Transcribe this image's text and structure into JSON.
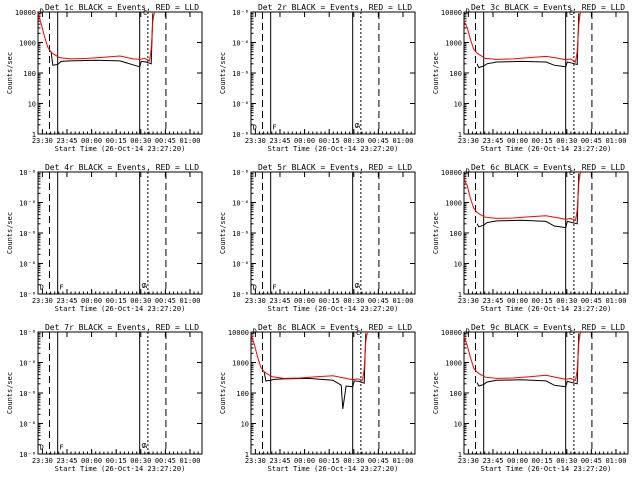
{
  "x_tick_labels": [
    "23:30",
    "23:45",
    "00:00",
    "00:15",
    "00:30",
    "00:45",
    "01:00"
  ],
  "x_label": "Start Time (26-Oct-14 23:27:20)",
  "y_label": "Counts/sec",
  "colors": {
    "events": "#000000",
    "lld": "#ff0000"
  },
  "chart_data": [
    {
      "type": "line",
      "title": "Det 1c BLACK = Events, RED = LLD",
      "y_scale": "log",
      "ylim": [
        1,
        10000
      ],
      "y_tick_labels": [
        "10000",
        "1000",
        "100",
        "10",
        "1"
      ],
      "xlim_min": [
        0,
        100
      ],
      "has_data": true,
      "annotations": [
        "D",
        "C"
      ],
      "series": [
        {
          "name": "Events",
          "color": "#000000",
          "x": [
            8,
            9,
            12,
            14,
            20,
            35,
            50,
            62,
            63,
            66,
            69,
            70
          ],
          "y": [
            500,
            180,
            190,
            240,
            250,
            260,
            250,
            160,
            240,
            230,
            200,
            9000
          ]
        },
        {
          "name": "LLD",
          "color": "#ff0000",
          "x": [
            0,
            2,
            4,
            6,
            8,
            10,
            13,
            20,
            30,
            40,
            50,
            58,
            62,
            65,
            68,
            69,
            70,
            71
          ],
          "y": [
            9000,
            4000,
            1500,
            700,
            480,
            400,
            320,
            290,
            300,
            330,
            360,
            290,
            280,
            300,
            250,
            600,
            5000,
            10000
          ]
        }
      ]
    },
    {
      "type": "line",
      "title": "Det 2r BLACK = Events, RED = LLD",
      "y_scale": "log",
      "ylim": [
        1,
        10000
      ],
      "y_tick_labels": [
        "10⁻⁶",
        "10⁻⁶",
        "10⁻⁶",
        "10⁻⁶",
        "10⁻⁶"
      ],
      "xlim_min": [
        0,
        100
      ],
      "has_data": false,
      "annotations": [
        "D",
        "F",
        "C",
        "A"
      ],
      "series": []
    },
    {
      "type": "line",
      "title": "Det 3c BLACK = Events, RED = LLD",
      "y_scale": "log",
      "ylim": [
        1,
        10000
      ],
      "y_tick_labels": [
        "10000",
        "1000",
        "100",
        "10",
        "1"
      ],
      "xlim_min": [
        0,
        100
      ],
      "has_data": true,
      "annotations": [
        "D",
        "C"
      ],
      "series": [
        {
          "name": "Events",
          "color": "#000000",
          "x": [
            8,
            9,
            12,
            14,
            20,
            35,
            50,
            55,
            62,
            63,
            66,
            69,
            70
          ],
          "y": [
            200,
            150,
            170,
            200,
            230,
            240,
            230,
            180,
            160,
            230,
            210,
            190,
            9000
          ]
        },
        {
          "name": "LLD",
          "color": "#ff0000",
          "x": [
            0,
            2,
            4,
            6,
            8,
            10,
            13,
            20,
            30,
            40,
            50,
            58,
            62,
            65,
            68,
            69,
            70,
            71
          ],
          "y": [
            5000,
            3000,
            1200,
            600,
            450,
            380,
            300,
            280,
            290,
            320,
            350,
            300,
            270,
            290,
            230,
            500,
            4000,
            10000
          ]
        }
      ]
    },
    {
      "type": "line",
      "title": "Det 4r BLACK = Events, RED = LLD",
      "y_scale": "log",
      "ylim": [
        1,
        10000
      ],
      "y_tick_labels": [
        "10⁻⁶",
        "10⁻⁶",
        "10⁻⁶",
        "10⁻⁶",
        "10⁻⁶"
      ],
      "xlim_min": [
        0,
        100
      ],
      "has_data": false,
      "annotations": [
        "D",
        "F",
        "C",
        "A"
      ],
      "series": []
    },
    {
      "type": "line",
      "title": "Det 5r BLACK = Events, RED = LLD",
      "y_scale": "log",
      "ylim": [
        1,
        10000
      ],
      "y_tick_labels": [
        "10⁻⁶",
        "10⁻⁶",
        "10⁻⁶",
        "10⁻⁶",
        "10⁻⁶"
      ],
      "xlim_min": [
        0,
        100
      ],
      "has_data": false,
      "annotations": [
        "D",
        "F",
        "C",
        "A"
      ],
      "series": []
    },
    {
      "type": "line",
      "title": "Det 6c BLACK = Events, RED = LLD",
      "y_scale": "log",
      "ylim": [
        1,
        10000
      ],
      "y_tick_labels": [
        "10000",
        "1000",
        "100",
        "10",
        "1"
      ],
      "xlim_min": [
        0,
        100
      ],
      "has_data": true,
      "annotations": [
        "D",
        "C"
      ],
      "series": [
        {
          "name": "Events",
          "color": "#000000",
          "x": [
            8,
            9,
            12,
            14,
            20,
            35,
            50,
            55,
            62,
            63,
            66,
            69,
            70
          ],
          "y": [
            200,
            160,
            180,
            220,
            250,
            260,
            240,
            170,
            150,
            240,
            220,
            200,
            9000
          ]
        },
        {
          "name": "LLD",
          "color": "#ff0000",
          "x": [
            0,
            2,
            4,
            6,
            8,
            10,
            13,
            20,
            30,
            40,
            50,
            58,
            62,
            65,
            68,
            69,
            70,
            71
          ],
          "y": [
            6000,
            3500,
            1300,
            650,
            470,
            400,
            330,
            300,
            310,
            340,
            370,
            310,
            280,
            300,
            260,
            550,
            4500,
            10000
          ]
        }
      ]
    },
    {
      "type": "line",
      "title": "Det 7r BLACK = Events, RED = LLD",
      "y_scale": "log",
      "ylim": [
        1,
        10000
      ],
      "y_tick_labels": [
        "10⁻⁶",
        "10⁻⁶",
        "10⁻⁶",
        "10⁻⁶",
        "10⁻⁶"
      ],
      "xlim_min": [
        0,
        100
      ],
      "has_data": false,
      "annotations": [
        "D",
        "F",
        "C",
        "A"
      ],
      "series": []
    },
    {
      "type": "line",
      "title": "Det 8c BLACK = Events, RED = LLD",
      "y_scale": "log",
      "ylim": [
        1,
        10000
      ],
      "y_tick_labels": [
        "10000",
        "1000",
        "100",
        "10",
        "1"
      ],
      "xlim_min": [
        0,
        100
      ],
      "has_data": true,
      "annotations": [
        "D",
        "C"
      ],
      "series": [
        {
          "name": "Events",
          "color": "#000000",
          "x": [
            8,
            9,
            12,
            14,
            20,
            35,
            50,
            55,
            56,
            58,
            62,
            63,
            66,
            69,
            70
          ],
          "y": [
            500,
            250,
            260,
            280,
            290,
            300,
            260,
            180,
            30,
            170,
            160,
            250,
            240,
            210,
            9000
          ]
        },
        {
          "name": "LLD",
          "color": "#ff0000",
          "x": [
            0,
            2,
            4,
            6,
            8,
            10,
            13,
            20,
            30,
            40,
            50,
            58,
            62,
            65,
            68,
            69,
            70,
            71
          ],
          "y": [
            8000,
            4000,
            1500,
            700,
            500,
            420,
            340,
            300,
            310,
            340,
            370,
            300,
            270,
            290,
            260,
            600,
            5000,
            10000
          ]
        }
      ]
    },
    {
      "type": "line",
      "title": "Det 9c BLACK = Events, RED = LLD",
      "y_scale": "log",
      "ylim": [
        1,
        10000
      ],
      "y_tick_labels": [
        "10000",
        "1000",
        "100",
        "10",
        "1"
      ],
      "xlim_min": [
        0,
        100
      ],
      "has_data": true,
      "annotations": [
        "D",
        "C"
      ],
      "series": [
        {
          "name": "Events",
          "color": "#000000",
          "x": [
            8,
            9,
            12,
            14,
            20,
            35,
            50,
            55,
            62,
            63,
            66,
            69,
            70
          ],
          "y": [
            220,
            170,
            190,
            230,
            260,
            270,
            250,
            180,
            160,
            240,
            220,
            200,
            9000
          ]
        },
        {
          "name": "LLD",
          "color": "#ff0000",
          "x": [
            0,
            2,
            4,
            6,
            8,
            10,
            13,
            20,
            30,
            40,
            50,
            58,
            62,
            65,
            68,
            69,
            70,
            71
          ],
          "y": [
            7000,
            3500,
            1400,
            650,
            480,
            410,
            330,
            300,
            310,
            340,
            380,
            310,
            280,
            300,
            260,
            550,
            4500,
            10000
          ]
        }
      ]
    }
  ]
}
